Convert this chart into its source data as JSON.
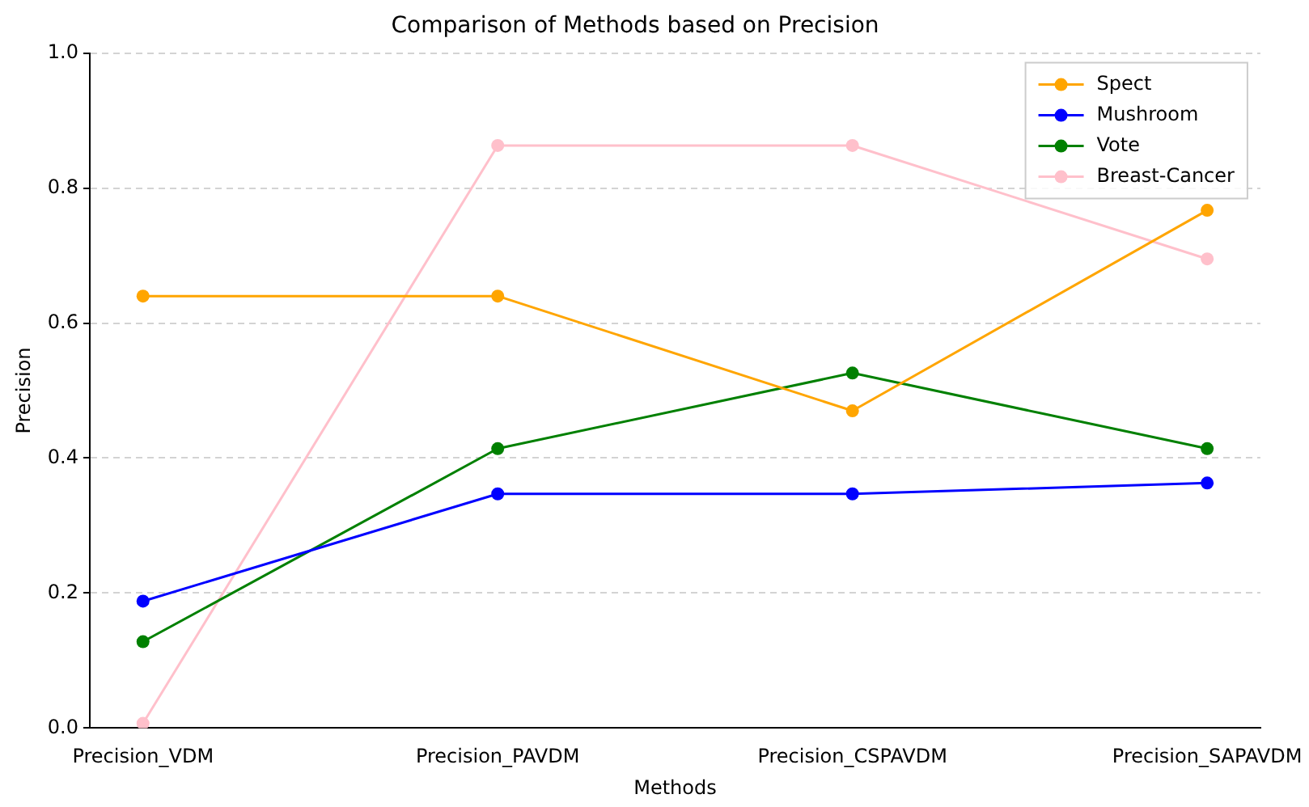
{
  "chart_data": {
    "type": "line",
    "title": "Comparison of Methods based on Precision",
    "xlabel": "Methods",
    "ylabel": "Precision",
    "categories": [
      "Precision_VDM",
      "Precision_PAVDM",
      "Precision_CSPAVDM",
      "Precision_SAPAVDM"
    ],
    "series": [
      {
        "name": "Spect",
        "color": "#ffa500",
        "values": [
          0.64,
          0.64,
          0.47,
          0.767
        ]
      },
      {
        "name": "Mushroom",
        "color": "#0000ff",
        "values": [
          0.188,
          0.347,
          0.347,
          0.363
        ]
      },
      {
        "name": "Vote",
        "color": "#008000",
        "values": [
          0.128,
          0.414,
          0.526,
          0.414
        ]
      },
      {
        "name": "Breast-Cancer",
        "color": "#ffc0cb",
        "values": [
          0.007,
          0.863,
          0.863,
          0.695
        ]
      }
    ],
    "ylim": [
      0,
      1
    ],
    "yticks": [
      {
        "value": 0,
        "label": "0.0"
      },
      {
        "value": 0.2,
        "label": "0.2"
      },
      {
        "value": 0.4,
        "label": "0.4"
      },
      {
        "value": 0.6,
        "label": "0.6"
      },
      {
        "value": 0.8,
        "label": "0.8"
      },
      {
        "value": 1,
        "label": "1.0"
      }
    ],
    "grid": "y",
    "legend": "top right",
    "marker": "circle",
    "line_style": "solid"
  }
}
